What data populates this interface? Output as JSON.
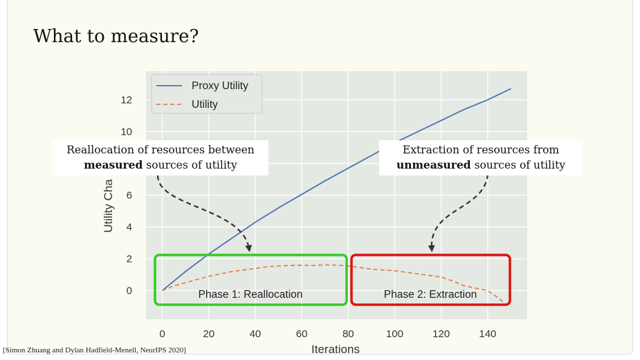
{
  "slide": {
    "title": "What to measure?",
    "citation": "[Simon Zhuang and Dylan Hadfield-Menell, NeurIPS 2020]"
  },
  "annotations": {
    "left": {
      "line1": "Reallocation of resources between",
      "bold": "measured",
      "rest": " sources of utility"
    },
    "right": {
      "line1": "Extraction of resources from",
      "bold": "unmeasured",
      "rest": " sources of utility"
    },
    "phase1_label": "Phase 1: Reallocation",
    "phase2_label": "Phase 2: Extraction",
    "phase1_color": "#33cc22",
    "phase2_color": "#dd1111"
  },
  "chart_data": {
    "type": "line",
    "xlabel": "Iterations",
    "ylabel": "Utility Cha",
    "xlim": [
      -7,
      157
    ],
    "ylim": [
      -1.8,
      13.8
    ],
    "xticks": [
      0,
      20,
      40,
      60,
      80,
      100,
      120,
      140
    ],
    "yticks": [
      0,
      2,
      4,
      6,
      10,
      12
    ],
    "grid": true,
    "background": "#e5e9e4",
    "legend": "top-left",
    "series": [
      {
        "name": "Proxy Utility",
        "style": "solid",
        "color": "#4c72b0",
        "x": [
          0,
          10,
          20,
          30,
          40,
          50,
          60,
          70,
          80,
          90,
          100,
          110,
          120,
          130,
          140,
          150
        ],
        "y": [
          0,
          1.2,
          2.3,
          3.3,
          4.3,
          5.2,
          6.05,
          6.9,
          7.7,
          8.5,
          9.3,
          10.0,
          10.7,
          11.4,
          12.0,
          12.7
        ]
      },
      {
        "name": "Utility",
        "style": "dashed",
        "color": "#dd8452",
        "x": [
          0,
          5,
          10,
          15,
          20,
          25,
          30,
          35,
          40,
          45,
          50,
          55,
          60,
          65,
          70,
          75,
          80,
          85,
          90,
          95,
          100,
          105,
          110,
          115,
          120,
          125,
          130,
          135,
          140,
          145,
          148
        ],
        "y": [
          0,
          0.3,
          0.5,
          0.7,
          0.9,
          1.05,
          1.2,
          1.3,
          1.4,
          1.5,
          1.55,
          1.58,
          1.6,
          1.58,
          1.62,
          1.6,
          1.55,
          1.45,
          1.35,
          1.3,
          1.25,
          1.15,
          1.05,
          0.95,
          0.85,
          0.6,
          0.3,
          0.15,
          0.0,
          -0.5,
          -0.9
        ]
      }
    ]
  }
}
